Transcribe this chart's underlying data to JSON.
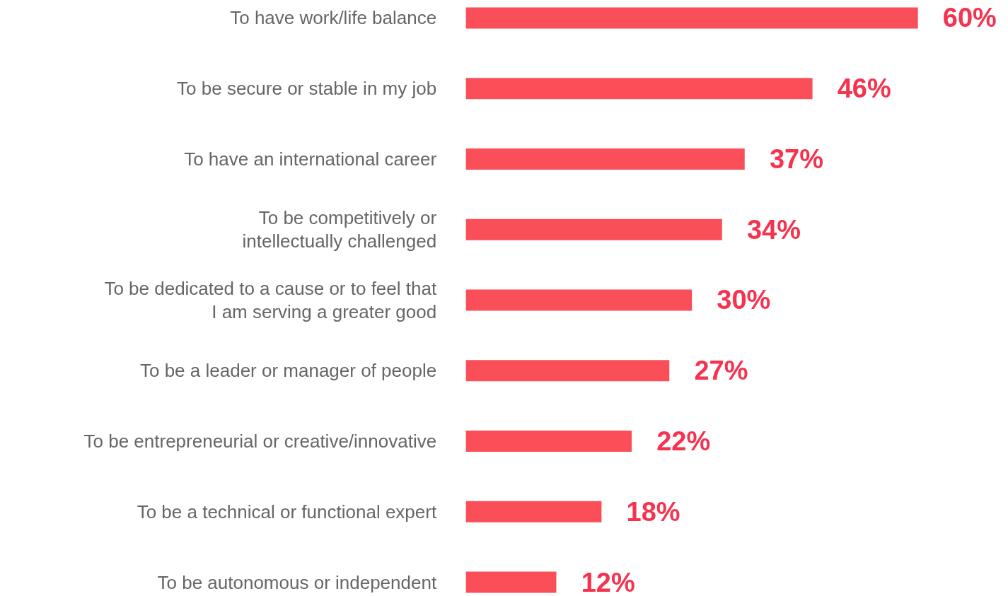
{
  "chart_data": {
    "type": "bar",
    "orientation": "horizontal",
    "categories": [
      "To have work/life balance",
      "To be secure or stable in my job",
      "To have an international career",
      "To be competitively or\nintellectually challenged",
      "To be dedicated to a cause or to feel that\nI am serving a greater good",
      "To be a leader or manager of people",
      "To be entrepreneurial or creative/innovative",
      "To be a technical or functional expert",
      "To be autonomous or independent"
    ],
    "values": [
      60,
      46,
      37,
      34,
      30,
      27,
      22,
      18,
      12
    ],
    "value_labels": [
      "60%",
      "46%",
      "37%",
      "34%",
      "30%",
      "27%",
      "22%",
      "18%",
      "12%"
    ],
    "color": "#fa4f58",
    "grid": false
  }
}
